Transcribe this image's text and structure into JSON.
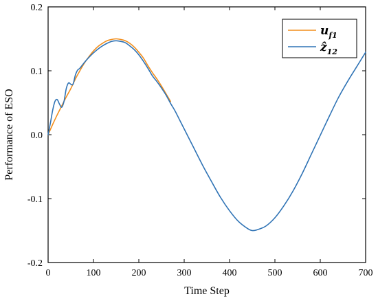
{
  "chart_data": {
    "type": "line",
    "title": "",
    "xlabel": "Time Step",
    "ylabel": "Performance of ESO",
    "xlim": [
      0,
      700
    ],
    "ylim": [
      -0.2,
      0.2
    ],
    "x_ticks": [
      0,
      100,
      200,
      300,
      400,
      500,
      600,
      700
    ],
    "y_ticks": [
      -0.2,
      -0.1,
      0.0,
      0.1,
      0.2
    ],
    "x_tick_labels": [
      "0",
      "100",
      "200",
      "300",
      "400",
      "500",
      "600",
      "700"
    ],
    "y_tick_labels": [
      "-0.2",
      "-0.1",
      "0.0",
      "0.1",
      "0.2"
    ],
    "grid": false,
    "legend_position": "top-right",
    "series": [
      {
        "name": "u_f1",
        "legend_main": "u",
        "legend_sub": "f1",
        "color": "#f28e1c",
        "x": [
          0,
          10,
          20,
          30,
          40,
          50,
          60,
          70,
          80,
          90,
          100,
          110,
          120,
          130,
          140,
          150,
          160,
          170,
          180,
          190,
          200,
          210,
          220,
          230,
          240,
          250,
          260,
          270
        ],
        "y": [
          0.0,
          0.016,
          0.031,
          0.045,
          0.059,
          0.072,
          0.087,
          0.1,
          0.112,
          0.122,
          0.131,
          0.138,
          0.143,
          0.147,
          0.149,
          0.15,
          0.149,
          0.147,
          0.143,
          0.137,
          0.129,
          0.12,
          0.108,
          0.097,
          0.087,
          0.076,
          0.064,
          0.052
        ]
      },
      {
        "name": "z_hat_12",
        "legend_main": "ẑ",
        "legend_sub": "12",
        "color": "#2f73b5",
        "x": [
          0,
          5,
          10,
          15,
          20,
          25,
          30,
          35,
          40,
          45,
          50,
          55,
          60,
          65,
          70,
          80,
          90,
          100,
          110,
          120,
          130,
          140,
          150,
          160,
          170,
          180,
          190,
          200,
          210,
          220,
          230,
          240,
          250,
          260,
          270,
          280,
          290,
          300,
          320,
          340,
          360,
          380,
          400,
          420,
          440,
          450,
          460,
          480,
          500,
          520,
          540,
          560,
          580,
          600,
          620,
          640,
          660,
          680,
          700
        ],
        "y": [
          0.0,
          0.018,
          0.038,
          0.052,
          0.055,
          0.048,
          0.043,
          0.052,
          0.072,
          0.081,
          0.079,
          0.079,
          0.093,
          0.101,
          0.104,
          0.113,
          0.121,
          0.128,
          0.134,
          0.139,
          0.143,
          0.146,
          0.147,
          0.146,
          0.144,
          0.139,
          0.133,
          0.125,
          0.115,
          0.104,
          0.092,
          0.083,
          0.073,
          0.062,
          0.049,
          0.037,
          0.023,
          0.009,
          -0.019,
          -0.047,
          -0.073,
          -0.098,
          -0.119,
          -0.136,
          -0.147,
          -0.15,
          -0.149,
          -0.143,
          -0.13,
          -0.111,
          -0.088,
          -0.061,
          -0.031,
          -0.001,
          0.029,
          0.058,
          0.083,
          0.106,
          0.129
        ]
      }
    ]
  }
}
